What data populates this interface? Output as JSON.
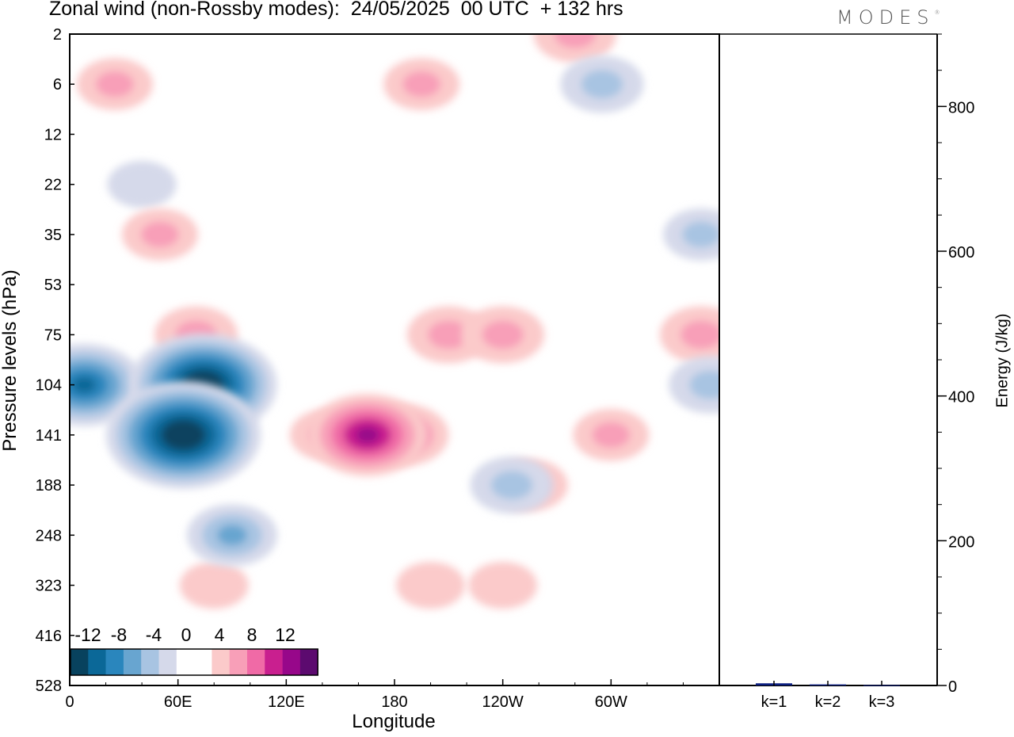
{
  "header": {
    "title": "Zonal wind (non-Rossby modes):  24/05/2025  00 UTC  + 132 hrs",
    "brand": "MODES"
  },
  "colors": {
    "neg": [
      "#08425e",
      "#0b6898",
      "#2a86bd",
      "#68a5d0",
      "#a8c4e2",
      "#d5d9ea"
    ],
    "pos": [
      "#fbcaca",
      "#f89fb8",
      "#f06aa6",
      "#c91f8f",
      "#97078a",
      "#5c0a6f"
    ],
    "bar": "#0d1f80"
  },
  "chart_data": [
    {
      "type": "heatmap",
      "title": "Zonal wind (non-Rossby modes):  24/05/2025  00 UTC  + 132 hrs",
      "xlabel": "Longitude",
      "ylabel": "Pressure levels (hPa)",
      "x_ticks": [
        "0",
        "60E",
        "120E",
        "180",
        "120W",
        "60W"
      ],
      "y_ticks": [
        "2",
        "6",
        "12",
        "22",
        "35",
        "53",
        "75",
        "104",
        "141",
        "188",
        "248",
        "323",
        "416",
        "528"
      ],
      "colorbar": {
        "labels": [
          "-12",
          "-8",
          "-4",
          "0",
          "4",
          "8",
          "12"
        ],
        "levels": [
          -14,
          -12,
          -10,
          -8,
          -6,
          -4,
          -2,
          2,
          4,
          6,
          8,
          10,
          12,
          14
        ]
      },
      "features": [
        {
          "lon": 63,
          "level": "141",
          "value": -15
        },
        {
          "lon": 74,
          "level": "104",
          "value": -14
        },
        {
          "lon": 8,
          "level": "104",
          "value": -10
        },
        {
          "lon": 90,
          "level": "248",
          "value": -6
        },
        {
          "lon": 165,
          "level": "141",
          "value": 10
        },
        {
          "lon": 185,
          "level": "141",
          "value": 6
        },
        {
          "lon": 143,
          "level": "141",
          "value": 4
        },
        {
          "lon": 210,
          "level": "75",
          "value": 5
        },
        {
          "lon": 255,
          "level": "188",
          "value": 4
        },
        {
          "lon": 240,
          "level": "75",
          "value": 5
        },
        {
          "lon": 245,
          "level": "188",
          "value": -5
        },
        {
          "lon": 300,
          "level": "141",
          "value": 4
        },
        {
          "lon": 350,
          "level": "75",
          "value": 5
        },
        {
          "lon": 355,
          "level": "104",
          "value": -5
        },
        {
          "lon": 70,
          "level": "75",
          "value": 5
        },
        {
          "lon": 195,
          "level": "6",
          "value": 4
        },
        {
          "lon": 280,
          "level": "2",
          "value": 5
        },
        {
          "lon": 295,
          "level": "6",
          "value": -5
        },
        {
          "lon": 50,
          "level": "35",
          "value": 4
        },
        {
          "lon": 25,
          "level": "6",
          "value": 4
        },
        {
          "lon": 350,
          "level": "35",
          "value": -4
        },
        {
          "lon": 40,
          "level": "22",
          "value": -3
        },
        {
          "lon": 80,
          "level": "323",
          "value": 3
        },
        {
          "lon": 200,
          "level": "323",
          "value": 3
        },
        {
          "lon": 240,
          "level": "323",
          "value": 3
        }
      ]
    },
    {
      "type": "bar",
      "ylabel": "Energy (J/kg)",
      "categories": [
        "k=1",
        "k=2",
        "k=3"
      ],
      "values": [
        3,
        1.5,
        0.5
      ],
      "ylim": [
        0,
        900
      ],
      "y_ticks": [
        "0",
        "200",
        "400",
        "600",
        "800"
      ]
    }
  ]
}
